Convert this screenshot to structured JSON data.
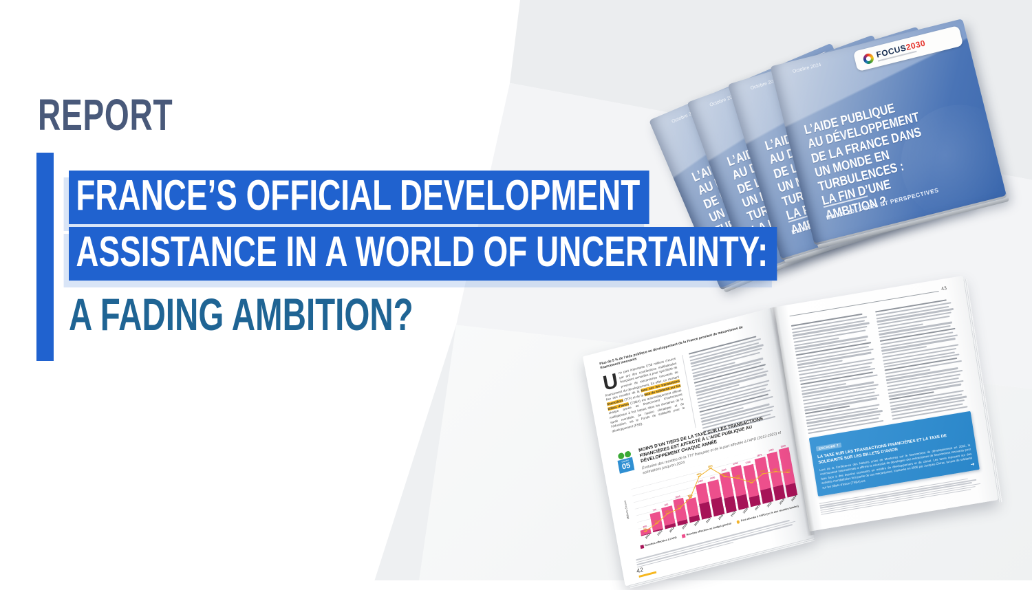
{
  "hero": {
    "kicker": "REPORT",
    "title_line1": "FRANCE’S OFFICIAL DEVELOPMENT",
    "title_line2": "ASSISTANCE IN A WORLD OF UNCERTAINTY:",
    "title_line3": "A FADING AMBITION?"
  },
  "colors": {
    "accent_blue": "#2062cf",
    "kicker_slate": "#49597a",
    "subtitle_petrol": "#1f6494",
    "cover_blue": "#4a74b6",
    "logo_red": "#e53028",
    "logo_navy": "#142b4e",
    "chart_pink": "#ed4f8c",
    "chart_magenta": "#a61357",
    "chart_yellow": "#f2b32a",
    "box_blue": "#2e8fd2",
    "highlight_yellow": "#f6b71f",
    "chapter_green": "#3aa935",
    "chapter_blue": "#2f8fd2"
  },
  "cover": {
    "date": "Octobre 2024",
    "logo_name": "FOCUS",
    "logo_year": "2030",
    "title_lines": [
      "L’AIDE PUBLIQUE",
      "AU DÉVELOPPEMENT",
      "DE LA FRANCE DANS",
      "UN MONDE EN",
      "TURBULENCES :",
      "LA FIN D’UNE",
      "AMBITION ?"
    ],
    "subtitle": "BILAN 2017-2024 ET PERSPECTIVES"
  },
  "book": {
    "left_page": {
      "running_head": "Plus de 5 % de l’aide publique au développement de la France provient de mécanismes de financement innovants",
      "drop_cap": "U",
      "intro_before": "ne part importante (738 millions d’euros par an) des contributions multilatérales françaises annuelles a pour spécificité de provenir de mécanismes innovants de financement du développement. En effet, un montant fixe des recettes de la ",
      "highlight_ttf": "taxe sur les transactions financières",
      "intro_mid": " (TTF) et de la ",
      "highlight_tsba": "taxe de solidarité sur les billets d’avion",
      "intro_after": " (TSBA) est automatiquement affecté chaque année au financement d’instruments multilatéraux à fort impact dans les domaines de la santé mondiale, de l’action climatique et de l’éducation, via le Fonds de solidarité pour le développement (FSD).",
      "chapter_word": "chapitre",
      "chapter_number": "05",
      "page_number": "42"
    },
    "right_page": {
      "page_number": "43",
      "box_tag": "ENCADRÉ 7",
      "box_title": "LA TAXE SUR LES TRANSACTIONS FINANCIÈRES ET LA TAXE DE SOLIDARITÉ SUR LES BILLETS D’AVION",
      "box_body": "Lors de la Conférence des Nations unies de Monterrey sur le financement du développement en 2002, la communauté internationale a affirmé la nécessité de développer des mécanismes de financement innovants pour faire face à des besoins croissants en matière de développement et de climat. Les taxes reposant sur des activités mondialisées font partie de ces mécanismes.",
      "box_body2": "Instaurée en 2006 par Jacques Chirac, la taxe de solidarité sur les billets d’avion (TSBA) est",
      "box_arrow": "➜"
    }
  },
  "chart_data": {
    "type": "bar",
    "title": "MOINS D’UN TIERS DE LA TAXE SUR LES TRANSACTIONS FINANCIÈRES EST AFFECTÉ À L’AIDE PUBLIQUE AU DÉVELOPPEMENT CHAQUE ANNÉE",
    "subtitle": "Évolution des recettes de la TTF française et de la part affectée à l’APD (2012-2022) et estimations jusqu’en 2024",
    "ylabel": "Millions d’euros",
    "categories": [
      "2012",
      "2013",
      "2014",
      "2015",
      "2016",
      "2017",
      "2018",
      "2019",
      "2020",
      "2021",
      "2022",
      "2023*",
      "2024*"
    ],
    "totals": [
      200,
      770,
      870,
      1060,
      950,
      1450,
      1450,
      1650,
      1780,
      1700,
      1870,
      1950,
      2000
    ],
    "pct_apd": [
      3,
      8,
      15,
      17,
      25,
      44,
      49,
      37,
      32,
      24,
      30,
      29,
      25
    ],
    "legend": [
      "Recettes affectées à l’APD",
      "Recettes affectées au budget général",
      "Part affectée à l’APD (en % des recettes totales)"
    ],
    "ylim": [
      0,
      2200
    ],
    "pct_axis_max": 55,
    "grid": true,
    "legend_position": "bottom"
  }
}
